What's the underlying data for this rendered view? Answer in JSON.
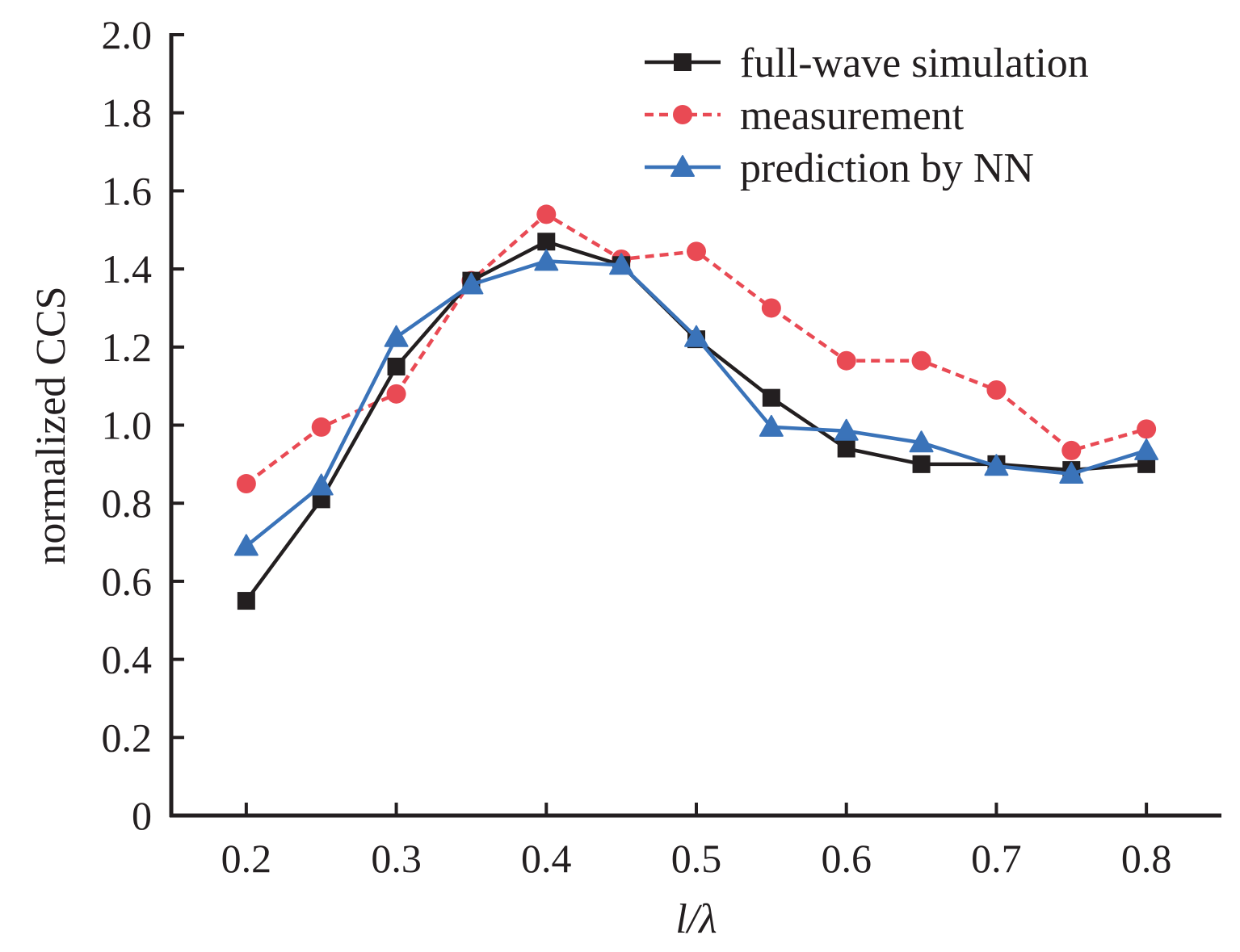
{
  "chart_data": {
    "type": "line",
    "title": "",
    "xlabel": "l/λ",
    "ylabel": "normalized CCS",
    "xlim": [
      0.15,
      0.85
    ],
    "ylim": [
      0,
      2.0
    ],
    "xticks": [
      0.2,
      0.3,
      0.4,
      0.5,
      0.6,
      0.7,
      0.8
    ],
    "xtick_labels": [
      "0.2",
      "0.3",
      "0.4",
      "0.5",
      "0.6",
      "0.7",
      "0.8"
    ],
    "yticks": [
      0,
      0.2,
      0.4,
      0.6,
      0.8,
      1.0,
      1.2,
      1.4,
      1.6,
      1.8,
      2.0
    ],
    "ytick_labels": [
      "0",
      "0.2",
      "0.4",
      "0.6",
      "0.8",
      "1.0",
      "1.2",
      "1.4",
      "1.6",
      "1.8",
      "2.0"
    ],
    "grid": false,
    "legend_position": "top-right",
    "x": [
      0.2,
      0.25,
      0.3,
      0.35,
      0.4,
      0.45,
      0.5,
      0.55,
      0.6,
      0.65,
      0.7,
      0.75,
      0.8
    ],
    "series": [
      {
        "name": "full-wave simulation",
        "color": "#231f20",
        "marker": "square",
        "line_style": "solid",
        "values": [
          0.55,
          0.81,
          1.15,
          1.37,
          1.47,
          1.41,
          1.22,
          1.07,
          0.94,
          0.9,
          0.9,
          0.885,
          0.9
        ]
      },
      {
        "name": "measurement",
        "color": "#e94a54",
        "marker": "circle",
        "line_style": "dashed",
        "values": [
          0.85,
          0.995,
          1.08,
          1.37,
          1.54,
          1.425,
          1.445,
          1.3,
          1.165,
          1.165,
          1.09,
          0.935,
          0.99
        ]
      },
      {
        "name": "prediction by NN",
        "color": "#3a73b9",
        "marker": "triangle",
        "line_style": "solid",
        "values": [
          0.69,
          0.845,
          1.225,
          1.36,
          1.42,
          1.41,
          1.225,
          0.995,
          0.985,
          0.955,
          0.895,
          0.875,
          0.935
        ]
      }
    ]
  }
}
